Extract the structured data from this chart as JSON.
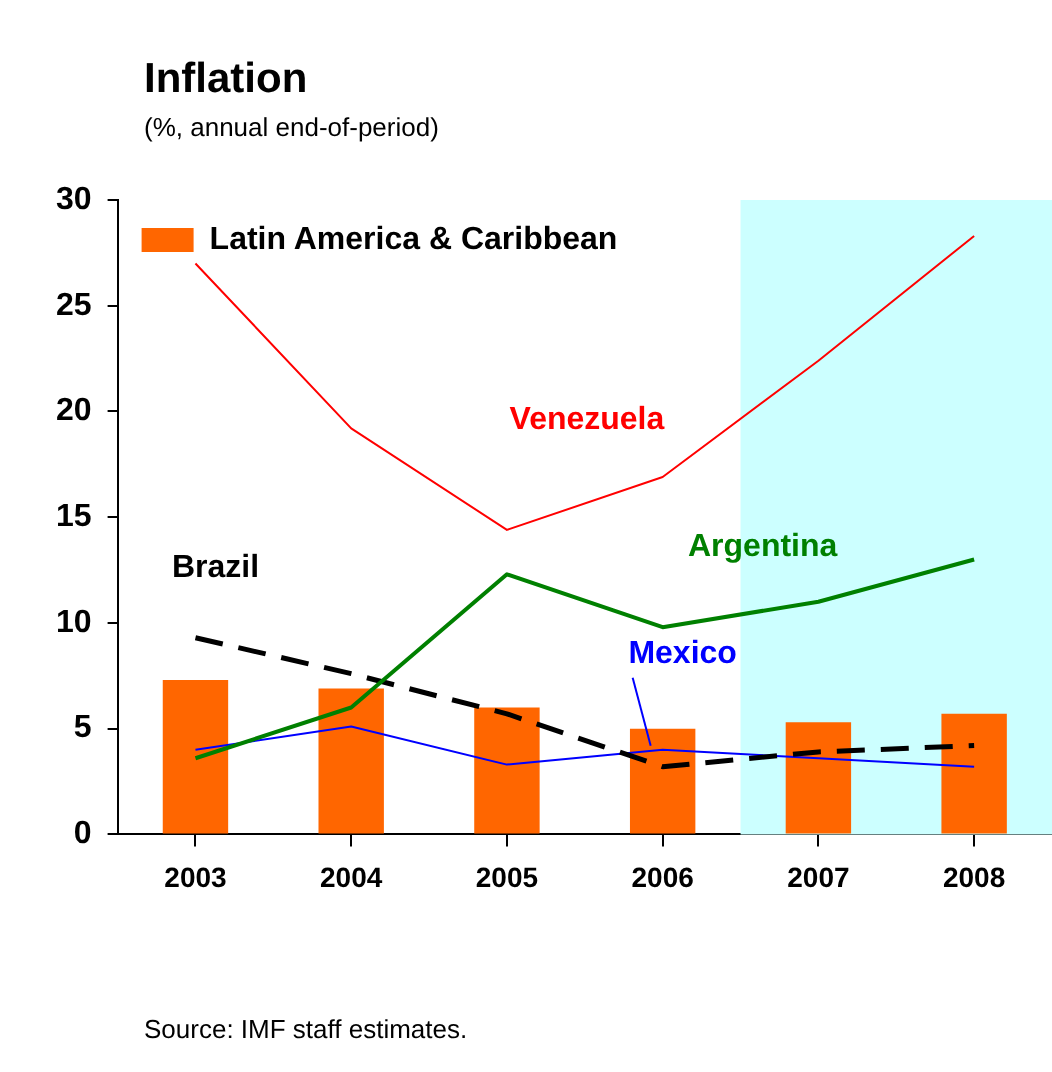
{
  "chart_data": {
    "type": "line",
    "title": "Inflation",
    "subtitle": "(%, annual end-of-period)",
    "x": [
      2003,
      2004,
      2005,
      2006,
      2007,
      2008
    ],
    "xlim": [
      2002.5,
      2008.5
    ],
    "xticks": [
      2003,
      2004,
      2005,
      2006,
      2007,
      2008
    ],
    "ylim": [
      0,
      30
    ],
    "yticks": [
      0,
      5,
      10,
      15,
      20,
      25,
      30
    ],
    "series": [
      {
        "name": "Latin America & Caribbean",
        "type": "bar",
        "color": "#ff6600",
        "values": [
          7.3,
          6.9,
          6.0,
          5.0,
          5.3,
          5.7
        ]
      },
      {
        "name": "Venezuela",
        "color": "#ff0000",
        "values": [
          27.0,
          19.2,
          14.4,
          16.9,
          22.4,
          28.3
        ]
      },
      {
        "name": "Argentina",
        "color": "#008000",
        "values": [
          3.6,
          6.0,
          12.3,
          9.8,
          11.0,
          13.0
        ]
      },
      {
        "name": "Brazil",
        "color": "#000000",
        "line_style": "dashed",
        "values": [
          9.3,
          7.6,
          5.7,
          3.2,
          3.9,
          4.2
        ]
      },
      {
        "name": "Mexico",
        "color": "#0000ff",
        "values": [
          4.0,
          5.1,
          3.3,
          4.0,
          3.6,
          3.2
        ]
      }
    ],
    "bands": [
      {
        "axis": "x",
        "from": 2006.5,
        "to": 2008.5,
        "color": "#ccffff"
      }
    ],
    "legend": "top left",
    "grid": false,
    "marker": "none",
    "annotations": [
      "Source: IMF staff estimates."
    ]
  }
}
